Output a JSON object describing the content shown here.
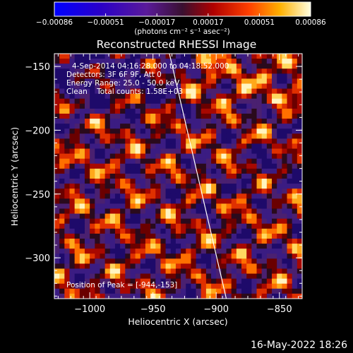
{
  "chart_data": {
    "type": "heatmap",
    "title": "Reconstructed RHESSI Image",
    "xlabel": "Heliocentric X (arcsec)",
    "ylabel": "Heliocentric Y (arcsec)",
    "xlim": [
      -1028,
      -832
    ],
    "ylim": [
      -332,
      -140
    ],
    "x_ticks": [
      -1000,
      -950,
      -900,
      -850
    ],
    "x_tick_labels": [
      "−1000",
      "−950",
      "−900",
      "−850"
    ],
    "y_ticks": [
      -300,
      -250,
      -200,
      -150
    ],
    "y_tick_labels": [
      "−300",
      "−250",
      "−200",
      "−150"
    ],
    "colorbar": {
      "colormap": "hot-blue",
      "range": [
        -0.00086,
        0.00086
      ],
      "tick_labels": [
        "−0.00086",
        "−0.00051",
        "−0.00017",
        "0.00017",
        "0.00051",
        "0.00086"
      ],
      "unit_label": "(photons cm⁻² s⁻¹ asec⁻²)"
    },
    "annotations": [
      "4-Sep-2014 04:16:28.000 to 04:18:52.000",
      "Detectors: 3F 6F 9F, Att 0",
      "Energy Range: 25.0 - 50.0 keV",
      "Clean    Total counts: 1.58E+03",
      "Position of Peak = [-944,-153]"
    ],
    "limb_line": {
      "x": [
        -937,
        -892
      ],
      "y": [
        -140,
        -332
      ]
    },
    "grid": false
  },
  "footer": {
    "timestamp": "16-May-2022 18:26"
  }
}
